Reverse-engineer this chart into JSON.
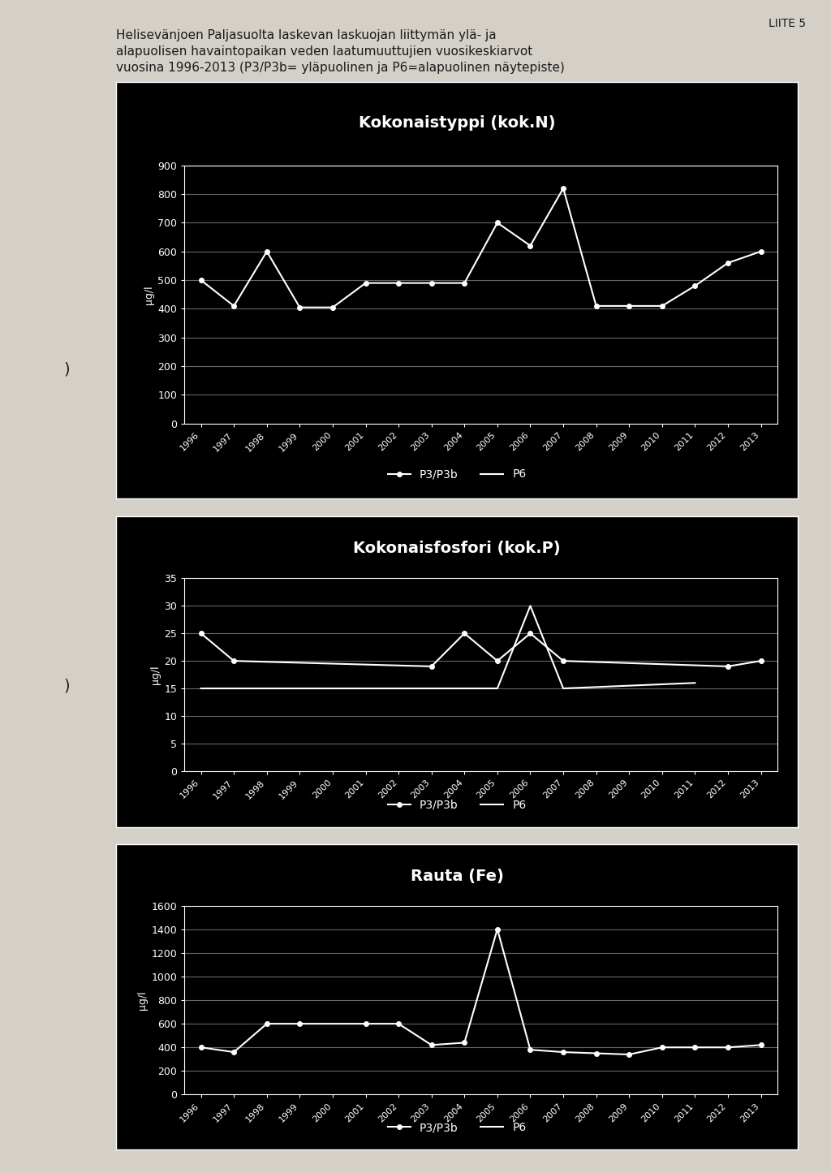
{
  "title_text": "Helisevänjoen Paljasuolta laskevan laskuojan liittymän ylä- ja\nalapuolisen havaintopaikan veden laatumuuttujien vuosikeskiarvot\nvuosina 1996-2013 (P3/P3b= yläpuolinen ja P6=alapuolinen näytepiste)",
  "liite_text": "LIITE 5",
  "years": [
    1996,
    1997,
    1998,
    1999,
    2000,
    2001,
    2002,
    2003,
    2004,
    2005,
    2006,
    2007,
    2008,
    2009,
    2010,
    2011,
    2012,
    2013
  ],
  "chart1": {
    "title": "Kokonaistyppi (kok.N)",
    "ylabel": "µg/l",
    "ylim": [
      0,
      900
    ],
    "yticks": [
      0,
      100,
      200,
      300,
      400,
      500,
      600,
      700,
      800,
      900
    ],
    "p3_data": [
      500,
      410,
      600,
      405,
      405,
      490,
      490,
      490,
      490,
      700,
      620,
      820,
      410,
      410,
      410,
      480,
      560,
      600
    ],
    "p6_data": [
      null,
      null,
      null,
      null,
      null,
      null,
      null,
      null,
      null,
      null,
      null,
      null,
      null,
      null,
      null,
      null,
      null,
      null
    ]
  },
  "chart2": {
    "title": "Kokonaisfosfori (kok.P)",
    "ylabel": "µg/l",
    "ylim": [
      0,
      35
    ],
    "yticks": [
      0,
      5,
      10,
      15,
      20,
      25,
      30,
      35
    ],
    "p3_data": [
      25,
      20,
      null,
      null,
      null,
      null,
      null,
      19,
      25,
      20,
      25,
      20,
      null,
      null,
      null,
      null,
      19,
      20
    ],
    "p6_data": [
      15,
      15,
      null,
      null,
      null,
      null,
      null,
      15,
      15,
      15,
      30,
      15,
      null,
      null,
      null,
      16,
      null,
      null
    ]
  },
  "chart3": {
    "title": "Rauta (Fe)",
    "ylabel": "µg/l",
    "ylim": [
      0,
      1600
    ],
    "yticks": [
      0,
      200,
      400,
      600,
      800,
      1000,
      1200,
      1400,
      1600
    ],
    "p3_data": [
      400,
      360,
      600,
      600,
      null,
      600,
      600,
      420,
      440,
      1400,
      380,
      360,
      350,
      340,
      400,
      400,
      400,
      420
    ],
    "p6_data": [
      null,
      null,
      null,
      null,
      null,
      null,
      null,
      null,
      null,
      null,
      null,
      null,
      null,
      null,
      null,
      null,
      null,
      null
    ]
  },
  "page_bg": "#d4d0c8",
  "chart_bg": "#000000",
  "line_color": "#ffffff",
  "text_color": "#ffffff",
  "page_text_color": "#1a1a1a",
  "grid_color": "#666666",
  "border_color": "#ffffff",
  "legend_p3": "P3/P3b",
  "legend_p6": "P6",
  "chart_title_fontsize": 14,
  "axis_label_fontsize": 9,
  "tick_fontsize": 9,
  "legend_fontsize": 10
}
